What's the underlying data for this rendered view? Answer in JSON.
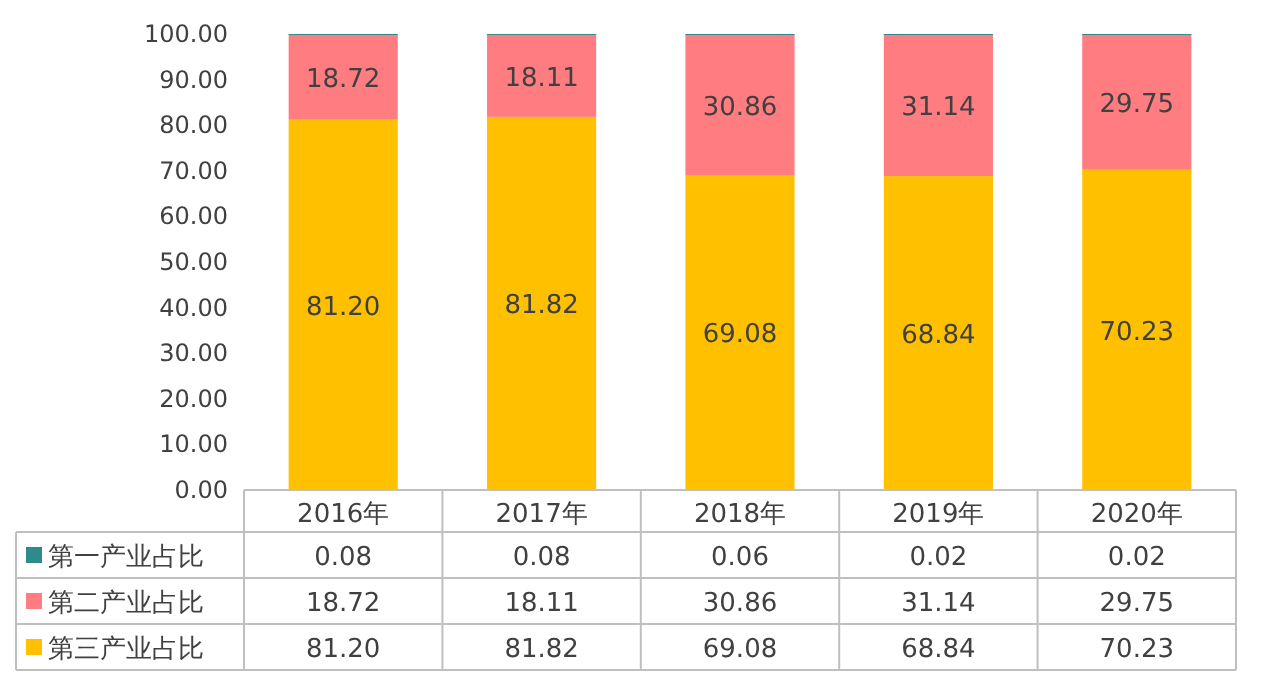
{
  "chart_data": {
    "type": "bar",
    "stacked": true,
    "categories": [
      "2016年",
      "2017年",
      "2018年",
      "2019年",
      "2020年"
    ],
    "series": [
      {
        "name": "第三产业占比",
        "color": "#ffc000",
        "values": [
          81.2,
          81.82,
          69.08,
          68.84,
          70.23
        ],
        "value_labels": [
          "81.20",
          "81.82",
          "69.08",
          "68.84",
          "70.23"
        ]
      },
      {
        "name": "第二产业占比",
        "color": "#ff7c80",
        "values": [
          18.72,
          18.11,
          30.86,
          31.14,
          29.75
        ],
        "value_labels": [
          "18.72",
          "18.11",
          "30.86",
          "31.14",
          "29.75"
        ]
      },
      {
        "name": "第一产业占比",
        "color": "#2e8b8b",
        "values": [
          0.08,
          0.08,
          0.06,
          0.02,
          0.02
        ],
        "value_labels": [
          "0.08",
          "0.08",
          "0.06",
          "0.02",
          "0.02"
        ]
      }
    ],
    "ylim": [
      0,
      100
    ],
    "yticks": [
      {
        "value": 0,
        "label": "0.00"
      },
      {
        "value": 10,
        "label": "10.00"
      },
      {
        "value": 20,
        "label": "20.00"
      },
      {
        "value": 30,
        "label": "30.00"
      },
      {
        "value": 40,
        "label": "40.00"
      },
      {
        "value": 50,
        "label": "50.00"
      },
      {
        "value": 60,
        "label": "60.00"
      },
      {
        "value": 70,
        "label": "70.00"
      },
      {
        "value": 80,
        "label": "80.00"
      },
      {
        "value": 90,
        "label": "90.00"
      },
      {
        "value": 100,
        "label": "100.00"
      }
    ],
    "legend": "bottom left"
  }
}
